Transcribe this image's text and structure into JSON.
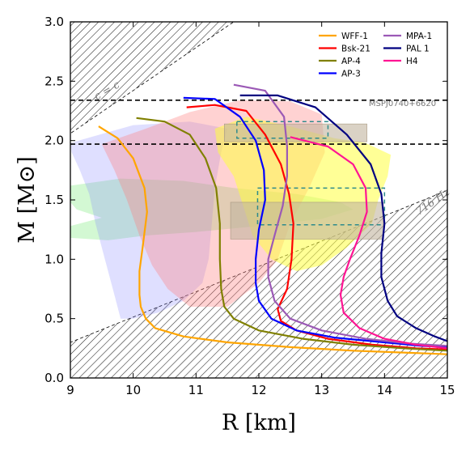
{
  "chart_data": {
    "type": "line",
    "xlabel": "R [km]",
    "ylabel": "M [M⊙]",
    "xlim": [
      9,
      15
    ],
    "ylim": [
      0.0,
      3.0
    ],
    "xticks": [
      "9",
      "10",
      "11",
      "12",
      "13",
      "14",
      "15"
    ],
    "yticks": [
      "0.0",
      "0.5",
      "1.0",
      "1.5",
      "2.0",
      "2.5",
      "3.0"
    ],
    "legend_position": "top-right",
    "series": [
      {
        "name": "WFF-1",
        "color": "#ffa500",
        "points": [
          [
            9.45,
            2.12
          ],
          [
            9.75,
            2.02
          ],
          [
            10.0,
            1.85
          ],
          [
            10.18,
            1.6
          ],
          [
            10.22,
            1.4
          ],
          [
            10.15,
            1.1
          ],
          [
            10.1,
            0.9
          ],
          [
            10.1,
            0.7
          ],
          [
            10.12,
            0.6
          ],
          [
            10.2,
            0.5
          ],
          [
            10.35,
            0.42
          ],
          [
            10.8,
            0.35
          ],
          [
            11.5,
            0.3
          ],
          [
            12.5,
            0.26
          ],
          [
            13.5,
            0.23
          ],
          [
            14.5,
            0.21
          ],
          [
            15,
            0.2
          ]
        ]
      },
      {
        "name": "Bsk-21",
        "color": "#ff0000",
        "points": [
          [
            10.85,
            2.28
          ],
          [
            11.3,
            2.3
          ],
          [
            11.8,
            2.25
          ],
          [
            12.1,
            2.05
          ],
          [
            12.35,
            1.8
          ],
          [
            12.48,
            1.55
          ],
          [
            12.55,
            1.3
          ],
          [
            12.52,
            1.0
          ],
          [
            12.45,
            0.75
          ],
          [
            12.3,
            0.58
          ],
          [
            12.35,
            0.48
          ],
          [
            12.6,
            0.4
          ],
          [
            13.1,
            0.33
          ],
          [
            13.8,
            0.28
          ],
          [
            14.5,
            0.25
          ],
          [
            15,
            0.24
          ]
        ]
      },
      {
        "name": "AP-4",
        "color": "#808000",
        "points": [
          [
            10.05,
            2.19
          ],
          [
            10.5,
            2.16
          ],
          [
            10.9,
            2.05
          ],
          [
            11.15,
            1.85
          ],
          [
            11.32,
            1.6
          ],
          [
            11.38,
            1.3
          ],
          [
            11.38,
            1.0
          ],
          [
            11.4,
            0.75
          ],
          [
            11.45,
            0.6
          ],
          [
            11.6,
            0.5
          ],
          [
            12.0,
            0.4
          ],
          [
            12.7,
            0.33
          ],
          [
            13.5,
            0.28
          ],
          [
            14.3,
            0.25
          ],
          [
            15,
            0.23
          ]
        ]
      },
      {
        "name": "AP-3",
        "color": "#0000ff",
        "points": [
          [
            10.8,
            2.36
          ],
          [
            11.3,
            2.35
          ],
          [
            11.7,
            2.2
          ],
          [
            11.95,
            2.0
          ],
          [
            12.08,
            1.75
          ],
          [
            12.1,
            1.5
          ],
          [
            12.0,
            1.25
          ],
          [
            11.95,
            1.0
          ],
          [
            11.95,
            0.8
          ],
          [
            12.0,
            0.65
          ],
          [
            12.2,
            0.5
          ],
          [
            12.6,
            0.4
          ],
          [
            13.2,
            0.34
          ],
          [
            14.0,
            0.3
          ],
          [
            14.6,
            0.27
          ],
          [
            15,
            0.26
          ]
        ]
      },
      {
        "name": "MPA-1",
        "color": "#9b59b6",
        "points": [
          [
            11.6,
            2.47
          ],
          [
            12.1,
            2.42
          ],
          [
            12.4,
            2.2
          ],
          [
            12.45,
            1.95
          ],
          [
            12.45,
            1.7
          ],
          [
            12.38,
            1.45
          ],
          [
            12.25,
            1.2
          ],
          [
            12.15,
            1.0
          ],
          [
            12.15,
            0.85
          ],
          [
            12.25,
            0.65
          ],
          [
            12.5,
            0.5
          ],
          [
            13.0,
            0.4
          ],
          [
            13.7,
            0.33
          ],
          [
            14.4,
            0.29
          ],
          [
            15,
            0.27
          ]
        ]
      },
      {
        "name": "PAL 1",
        "color": "#000080",
        "points": [
          [
            11.7,
            2.38
          ],
          [
            12.3,
            2.38
          ],
          [
            12.9,
            2.28
          ],
          [
            13.4,
            2.05
          ],
          [
            13.78,
            1.8
          ],
          [
            13.95,
            1.55
          ],
          [
            14.0,
            1.3
          ],
          [
            13.95,
            1.05
          ],
          [
            13.95,
            0.85
          ],
          [
            14.05,
            0.65
          ],
          [
            14.2,
            0.52
          ],
          [
            14.5,
            0.42
          ],
          [
            14.8,
            0.35
          ],
          [
            15.0,
            0.31
          ]
        ]
      },
      {
        "name": "H4",
        "color": "#ff1493",
        "points": [
          [
            12.5,
            2.03
          ],
          [
            13.1,
            1.95
          ],
          [
            13.5,
            1.8
          ],
          [
            13.7,
            1.6
          ],
          [
            13.72,
            1.4
          ],
          [
            13.6,
            1.2
          ],
          [
            13.45,
            1.0
          ],
          [
            13.35,
            0.85
          ],
          [
            13.3,
            0.7
          ],
          [
            13.35,
            0.55
          ],
          [
            13.6,
            0.42
          ],
          [
            14.0,
            0.33
          ],
          [
            14.5,
            0.28
          ],
          [
            15,
            0.25
          ]
        ]
      }
    ],
    "hlines": [
      {
        "y": 2.34,
        "style": "dashed",
        "color": "#000000",
        "label": "MSPJ0740+6620"
      },
      {
        "y": 1.97,
        "style": "dashed",
        "color": "#000000"
      }
    ],
    "regions": [
      {
        "type": "hatched",
        "color": "#333333",
        "points": [
          [
            9,
            3.0
          ],
          [
            11.6,
            3.0
          ],
          [
            9,
            2.06
          ]
        ]
      },
      {
        "type": "hatched",
        "color": "#333333",
        "points": [
          [
            9,
            0.0
          ],
          [
            15,
            0.0
          ],
          [
            15,
            1.58
          ],
          [
            9,
            0.3
          ]
        ]
      },
      {
        "type": "fill",
        "color": "#90ee90",
        "opacity": 0.4,
        "points": [
          [
            9,
            1.62
          ],
          [
            9.8,
            1.68
          ],
          [
            10.8,
            1.66
          ],
          [
            11.6,
            1.6
          ],
          [
            12.6,
            1.55
          ],
          [
            13.3,
            1.48
          ],
          [
            13.5,
            1.42
          ],
          [
            13.0,
            1.34
          ],
          [
            12.0,
            1.28
          ],
          [
            11.0,
            1.23
          ],
          [
            10.2,
            1.2
          ],
          [
            9.6,
            1.16
          ],
          [
            9,
            1.18
          ],
          [
            9,
            1.28
          ],
          [
            9.5,
            1.35
          ],
          [
            9.1,
            1.42
          ],
          [
            9,
            1.48
          ]
        ]
      },
      {
        "type": "fill",
        "color": "#8080ff",
        "opacity": 0.25,
        "points": [
          [
            9,
            1.98
          ],
          [
            9.4,
            2.04
          ],
          [
            10.0,
            2.13
          ],
          [
            10.9,
            2.16
          ],
          [
            11.5,
            2.1
          ],
          [
            11.4,
            1.9
          ],
          [
            11.3,
            1.6
          ],
          [
            11.25,
            1.3
          ],
          [
            11.2,
            1.0
          ],
          [
            11.1,
            0.8
          ],
          [
            10.8,
            0.65
          ],
          [
            10.4,
            0.55
          ],
          [
            10.0,
            0.5
          ],
          [
            9.8,
            0.5
          ],
          [
            9.7,
            0.7
          ],
          [
            9.6,
            0.9
          ],
          [
            9.5,
            1.1
          ],
          [
            9.4,
            1.3
          ],
          [
            9.3,
            1.55
          ],
          [
            9.15,
            1.75
          ],
          [
            9.02,
            1.9
          ]
        ]
      },
      {
        "type": "fill",
        "color": "#ff7f7f",
        "opacity": 0.35,
        "points": [
          [
            9.5,
            1.97
          ],
          [
            10.2,
            2.1
          ],
          [
            10.9,
            2.24
          ],
          [
            11.7,
            2.34
          ],
          [
            12.5,
            2.33
          ],
          [
            13.0,
            2.22
          ],
          [
            13.05,
            1.9
          ],
          [
            12.8,
            1.6
          ],
          [
            12.5,
            1.3
          ],
          [
            12.3,
            1.0
          ],
          [
            12.0,
            0.8
          ],
          [
            11.5,
            0.6
          ],
          [
            10.9,
            0.6
          ],
          [
            10.55,
            0.75
          ],
          [
            10.3,
            0.95
          ],
          [
            10.1,
            1.2
          ],
          [
            9.9,
            1.5
          ],
          [
            9.7,
            1.75
          ]
        ]
      },
      {
        "type": "fill",
        "color": "#ffff40",
        "opacity": 0.55,
        "points": [
          [
            11.3,
            2.1
          ],
          [
            11.8,
            2.2
          ],
          [
            12.5,
            2.12
          ],
          [
            13.2,
            2.02
          ],
          [
            13.7,
            1.98
          ],
          [
            14.1,
            1.88
          ],
          [
            14.05,
            1.7
          ],
          [
            13.9,
            1.5
          ],
          [
            13.8,
            1.3
          ],
          [
            13.4,
            1.1
          ],
          [
            13.0,
            0.95
          ],
          [
            12.6,
            0.9
          ],
          [
            12.2,
            1.0
          ],
          [
            11.9,
            1.2
          ],
          [
            11.75,
            1.45
          ],
          [
            11.6,
            1.7
          ],
          [
            11.35,
            1.9
          ]
        ]
      },
      {
        "type": "rect",
        "color": "#c2b49e",
        "opacity": 0.6,
        "x": [
          11.45,
          13.72
        ],
        "y": [
          1.99,
          2.14
        ]
      },
      {
        "type": "rect",
        "color": "#c2b49e",
        "opacity": 0.6,
        "x": [
          11.55,
          13.98
        ],
        "y": [
          1.17,
          1.48
        ]
      },
      {
        "type": "dashed-rect",
        "color": "#2e8b8b",
        "x": [
          11.65,
          13.1
        ],
        "y": [
          2.02,
          2.16
        ]
      },
      {
        "type": "dashed-rect",
        "color": "#2e8b8b",
        "x": [
          11.98,
          14.0
        ],
        "y": [
          1.29,
          1.6
        ]
      }
    ],
    "annotations": [
      {
        "text": "c = c",
        "x": 9.42,
        "y": 2.34,
        "rotation": -30,
        "style": "serif-italic"
      },
      {
        "text": "MSPJ0740+6620",
        "x": 13.75,
        "y": 2.29,
        "style": "small"
      },
      {
        "text": "716 Hz",
        "x": 14.55,
        "y": 1.37,
        "rotation": -35,
        "style": "serif-italic"
      }
    ]
  }
}
